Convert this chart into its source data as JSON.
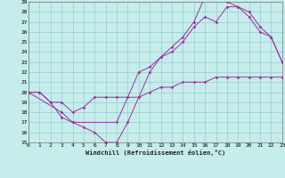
{
  "xlabel": "Windchill (Refroidissement éolien,°C)",
  "bg_color": "#c6ecec",
  "line_color": "#993399",
  "grid_color": "#99cccc",
  "xlim": [
    0,
    23
  ],
  "ylim": [
    15,
    29
  ],
  "xticks": [
    0,
    1,
    2,
    3,
    4,
    5,
    6,
    7,
    8,
    9,
    10,
    11,
    12,
    13,
    14,
    15,
    16,
    17,
    18,
    19,
    20,
    21,
    22,
    23
  ],
  "yticks": [
    15,
    16,
    17,
    18,
    19,
    20,
    21,
    22,
    23,
    24,
    25,
    26,
    27,
    28,
    29
  ],
  "series1": [
    [
      0,
      20.0
    ],
    [
      1,
      20.0
    ],
    [
      2,
      19.0
    ],
    [
      3,
      19.0
    ],
    [
      4,
      18.0
    ],
    [
      5,
      18.5
    ],
    [
      6,
      19.5
    ],
    [
      7,
      19.5
    ],
    [
      8,
      19.5
    ],
    [
      9,
      19.5
    ],
    [
      10,
      19.5
    ],
    [
      11,
      20.0
    ],
    [
      12,
      20.5
    ],
    [
      13,
      20.5
    ],
    [
      14,
      21.0
    ],
    [
      15,
      21.0
    ],
    [
      16,
      21.0
    ],
    [
      17,
      21.5
    ],
    [
      18,
      21.5
    ],
    [
      19,
      21.5
    ],
    [
      20,
      21.5
    ],
    [
      21,
      21.5
    ],
    [
      22,
      21.5
    ],
    [
      23,
      21.5
    ]
  ],
  "series2": [
    [
      0,
      20.0
    ],
    [
      1,
      20.0
    ],
    [
      2,
      19.0
    ],
    [
      3,
      17.5
    ],
    [
      4,
      17.0
    ],
    [
      5,
      16.5
    ],
    [
      6,
      16.0
    ],
    [
      7,
      15.0
    ],
    [
      8,
      15.0
    ],
    [
      9,
      17.0
    ],
    [
      10,
      19.5
    ],
    [
      11,
      22.0
    ],
    [
      12,
      23.5
    ],
    [
      13,
      24.0
    ],
    [
      14,
      25.0
    ],
    [
      15,
      26.5
    ],
    [
      16,
      27.5
    ],
    [
      17,
      27.0
    ],
    [
      18,
      28.5
    ],
    [
      19,
      28.5
    ],
    [
      20,
      27.5
    ],
    [
      21,
      26.0
    ],
    [
      22,
      25.5
    ],
    [
      23,
      23.0
    ]
  ],
  "series3": [
    [
      0,
      20.0
    ],
    [
      3,
      18.0
    ],
    [
      4,
      17.0
    ],
    [
      8,
      17.0
    ],
    [
      10,
      22.0
    ],
    [
      11,
      22.5
    ],
    [
      12,
      23.5
    ],
    [
      13,
      24.5
    ],
    [
      14,
      25.5
    ],
    [
      15,
      27.0
    ],
    [
      16,
      29.5
    ],
    [
      17,
      29.5
    ],
    [
      18,
      29.0
    ],
    [
      19,
      28.5
    ],
    [
      20,
      28.0
    ],
    [
      21,
      26.5
    ],
    [
      22,
      25.5
    ],
    [
      23,
      23.0
    ]
  ]
}
